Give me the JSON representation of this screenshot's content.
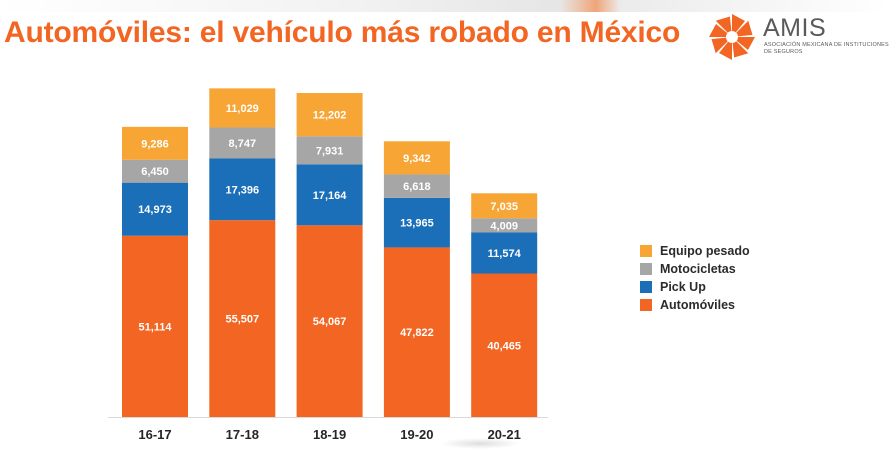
{
  "slide": {
    "title": "Automóviles: el vehículo más robado en México"
  },
  "logo": {
    "name": "AMIS",
    "subtitle": "ASOCIACIÓN MEXICANA DE INSTITUCIONES DE SEGUROS",
    "color": "#f26522"
  },
  "chart_data": {
    "type": "bar",
    "stacked": true,
    "categories": [
      "16-17",
      "17-18",
      "18-19",
      "19-20",
      "20-21"
    ],
    "series": [
      {
        "name": "Automóviles",
        "color": "#f26522",
        "values": [
          51114,
          55507,
          54067,
          47822,
          40465
        ]
      },
      {
        "name": "Pick Up",
        "color": "#1a6fb8",
        "values": [
          14973,
          17396,
          17164,
          13965,
          11574
        ]
      },
      {
        "name": "Motocicletas",
        "color": "#a6a6a6",
        "values": [
          6450,
          8747,
          7931,
          6618,
          4009
        ]
      },
      {
        "name": "Equipo pesado",
        "color": "#f7a535",
        "values": [
          9286,
          11029,
          12202,
          9342,
          7035
        ]
      }
    ],
    "data_labels": {
      "Automóviles": [
        "51,114",
        "55,507",
        "54,067",
        "47,822",
        "40,465"
      ],
      "Pick Up": [
        "14,973",
        "17,396",
        "17,164",
        "13,965",
        "11,574"
      ],
      "Motocicletas": [
        "6,450",
        "8,747",
        "7,931",
        "6,618",
        "4,009"
      ],
      "Equipo pesado": [
        "9,286",
        "11,029",
        "12,202",
        "9,342",
        "7,035"
      ]
    },
    "legend_order": [
      "Equipo pesado",
      "Motocicletas",
      "Pick Up",
      "Automóviles"
    ],
    "legend_position": "right",
    "ylim": [
      0,
      100000
    ],
    "grid": false,
    "xlabel": "",
    "ylabel": ""
  }
}
